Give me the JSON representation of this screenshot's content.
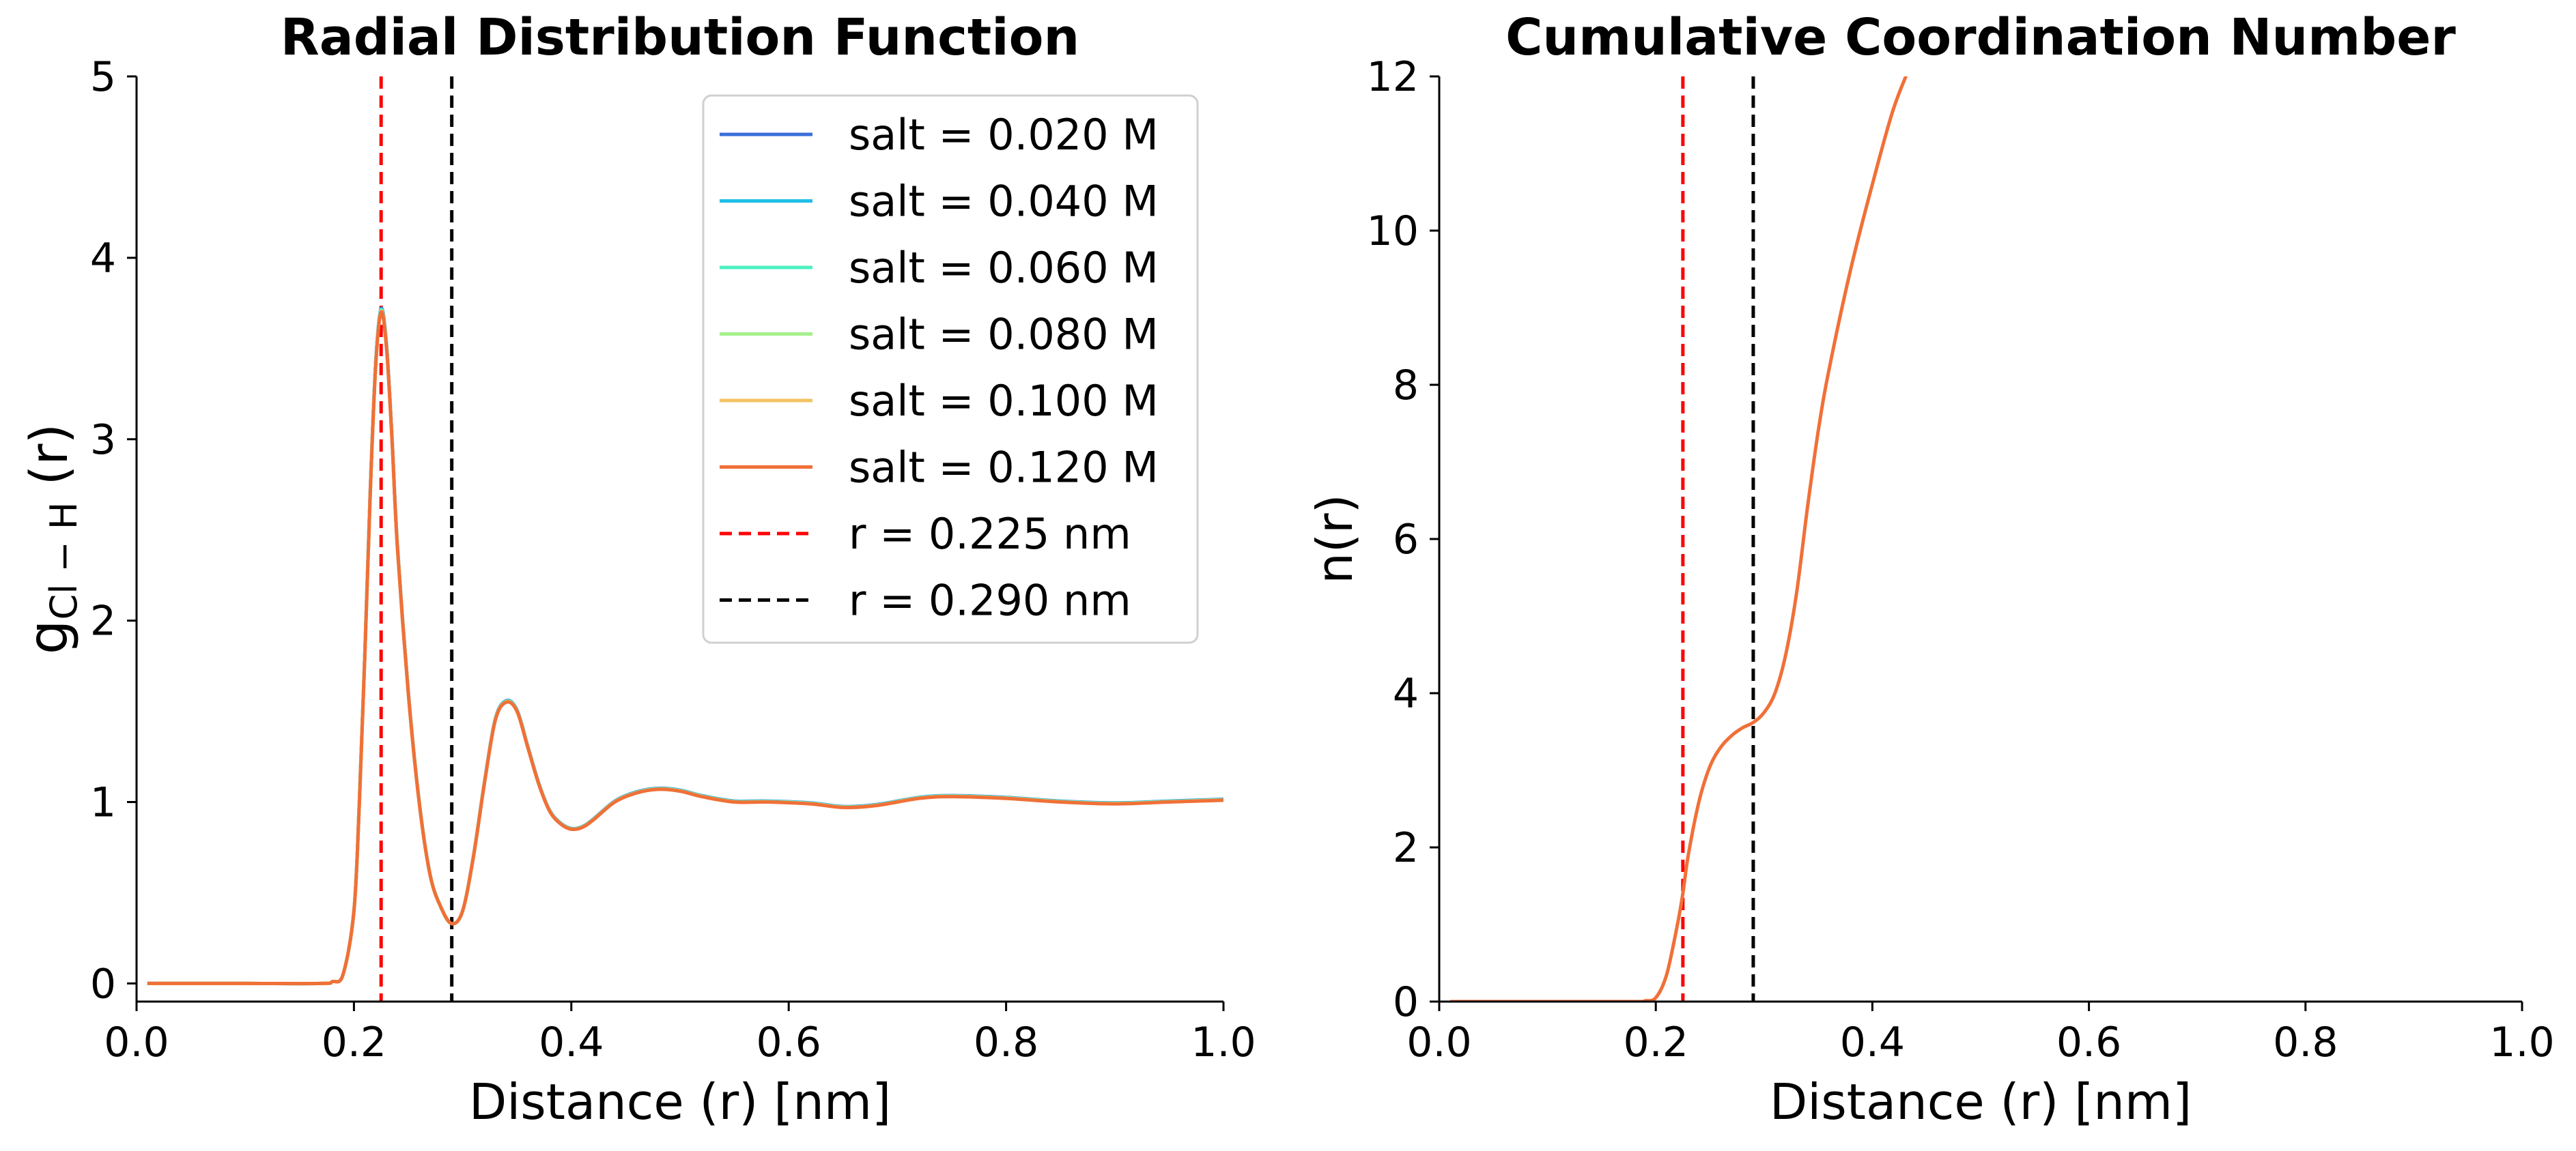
{
  "chart_data": [
    {
      "type": "line",
      "title": "Radial Distribution Function",
      "xlabel": "Distance (r) [nm]",
      "ylabel_main": "g",
      "ylabel_sub": "Cl − H",
      "ylabel_tail": " (r)",
      "xlim": [
        0.0,
        1.0
      ],
      "ylim": [
        -0.1,
        5.0
      ],
      "xticks": [
        "0.0",
        "0.2",
        "0.4",
        "0.6",
        "0.8",
        "1.0"
      ],
      "yticks": [
        "0",
        "1",
        "2",
        "3",
        "4",
        "5"
      ],
      "series": [
        {
          "name": "salt = 0.020 M",
          "color": "#3a6fd8"
        },
        {
          "name": "salt = 0.040 M",
          "color": "#20bfe6"
        },
        {
          "name": "salt = 0.060 M",
          "color": "#4cf0c0"
        },
        {
          "name": "salt = 0.080 M",
          "color": "#a6f08c"
        },
        {
          "name": "salt = 0.100 M",
          "color": "#f3c262"
        },
        {
          "name": "salt = 0.120 M",
          "color": "#f07038"
        }
      ],
      "curve": {
        "x": [
          0.01,
          0.1,
          0.17,
          0.18,
          0.19,
          0.2,
          0.205,
          0.21,
          0.215,
          0.22,
          0.225,
          0.23,
          0.235,
          0.24,
          0.25,
          0.26,
          0.27,
          0.28,
          0.29,
          0.3,
          0.31,
          0.32,
          0.33,
          0.34,
          0.35,
          0.36,
          0.37,
          0.38,
          0.39,
          0.4,
          0.41,
          0.42,
          0.44,
          0.46,
          0.48,
          0.5,
          0.52,
          0.55,
          0.58,
          0.62,
          0.65,
          0.68,
          0.72,
          0.75,
          0.8,
          0.85,
          0.9,
          0.95,
          1.0
        ],
        "y": [
          0.0,
          0.0,
          0.0,
          0.01,
          0.05,
          0.4,
          1.0,
          1.8,
          2.7,
          3.4,
          3.7,
          3.5,
          3.0,
          2.4,
          1.6,
          1.0,
          0.6,
          0.42,
          0.33,
          0.4,
          0.7,
          1.1,
          1.45,
          1.55,
          1.5,
          1.3,
          1.1,
          0.95,
          0.88,
          0.85,
          0.86,
          0.9,
          1.0,
          1.05,
          1.07,
          1.06,
          1.03,
          1.0,
          1.0,
          0.99,
          0.97,
          0.98,
          1.02,
          1.03,
          1.02,
          1.0,
          0.99,
          1.0,
          1.01
        ]
      },
      "vlines": [
        {
          "x": 0.225,
          "name": "r = 0.225 nm",
          "color": "#ff0000"
        },
        {
          "x": 0.29,
          "name": "r = 0.290 nm",
          "color": "#000000"
        }
      ],
      "legend": "top-right"
    },
    {
      "type": "line",
      "title": "Cumulative Coordination Number",
      "xlabel": "Distance (r) [nm]",
      "ylabel": "n(r)",
      "xlim": [
        0.0,
        1.0
      ],
      "ylim": [
        0,
        12
      ],
      "xticks": [
        "0.0",
        "0.2",
        "0.4",
        "0.6",
        "0.8",
        "1.0"
      ],
      "yticks": [
        "0",
        "2",
        "4",
        "6",
        "8",
        "10",
        "12"
      ],
      "series": [
        {
          "name": "salt = 0.120 M",
          "color": "#f07038",
          "x": [
            0.01,
            0.1,
            0.18,
            0.19,
            0.2,
            0.21,
            0.22,
            0.225,
            0.23,
            0.24,
            0.25,
            0.26,
            0.27,
            0.28,
            0.29,
            0.3,
            0.31,
            0.32,
            0.33,
            0.34,
            0.35,
            0.36,
            0.38,
            0.4,
            0.42,
            0.44
          ],
          "y": [
            0.0,
            0.0,
            0.0,
            0.01,
            0.05,
            0.35,
            1.0,
            1.4,
            1.9,
            2.6,
            3.05,
            3.3,
            3.45,
            3.55,
            3.62,
            3.75,
            4.0,
            4.5,
            5.3,
            6.4,
            7.4,
            8.2,
            9.5,
            10.6,
            11.6,
            12.3
          ]
        }
      ],
      "vlines": [
        {
          "x": 0.225,
          "name": "r = 0.225 nm",
          "color": "#ff0000"
        },
        {
          "x": 0.29,
          "name": "r = 0.290 nm",
          "color": "#000000"
        }
      ]
    }
  ]
}
